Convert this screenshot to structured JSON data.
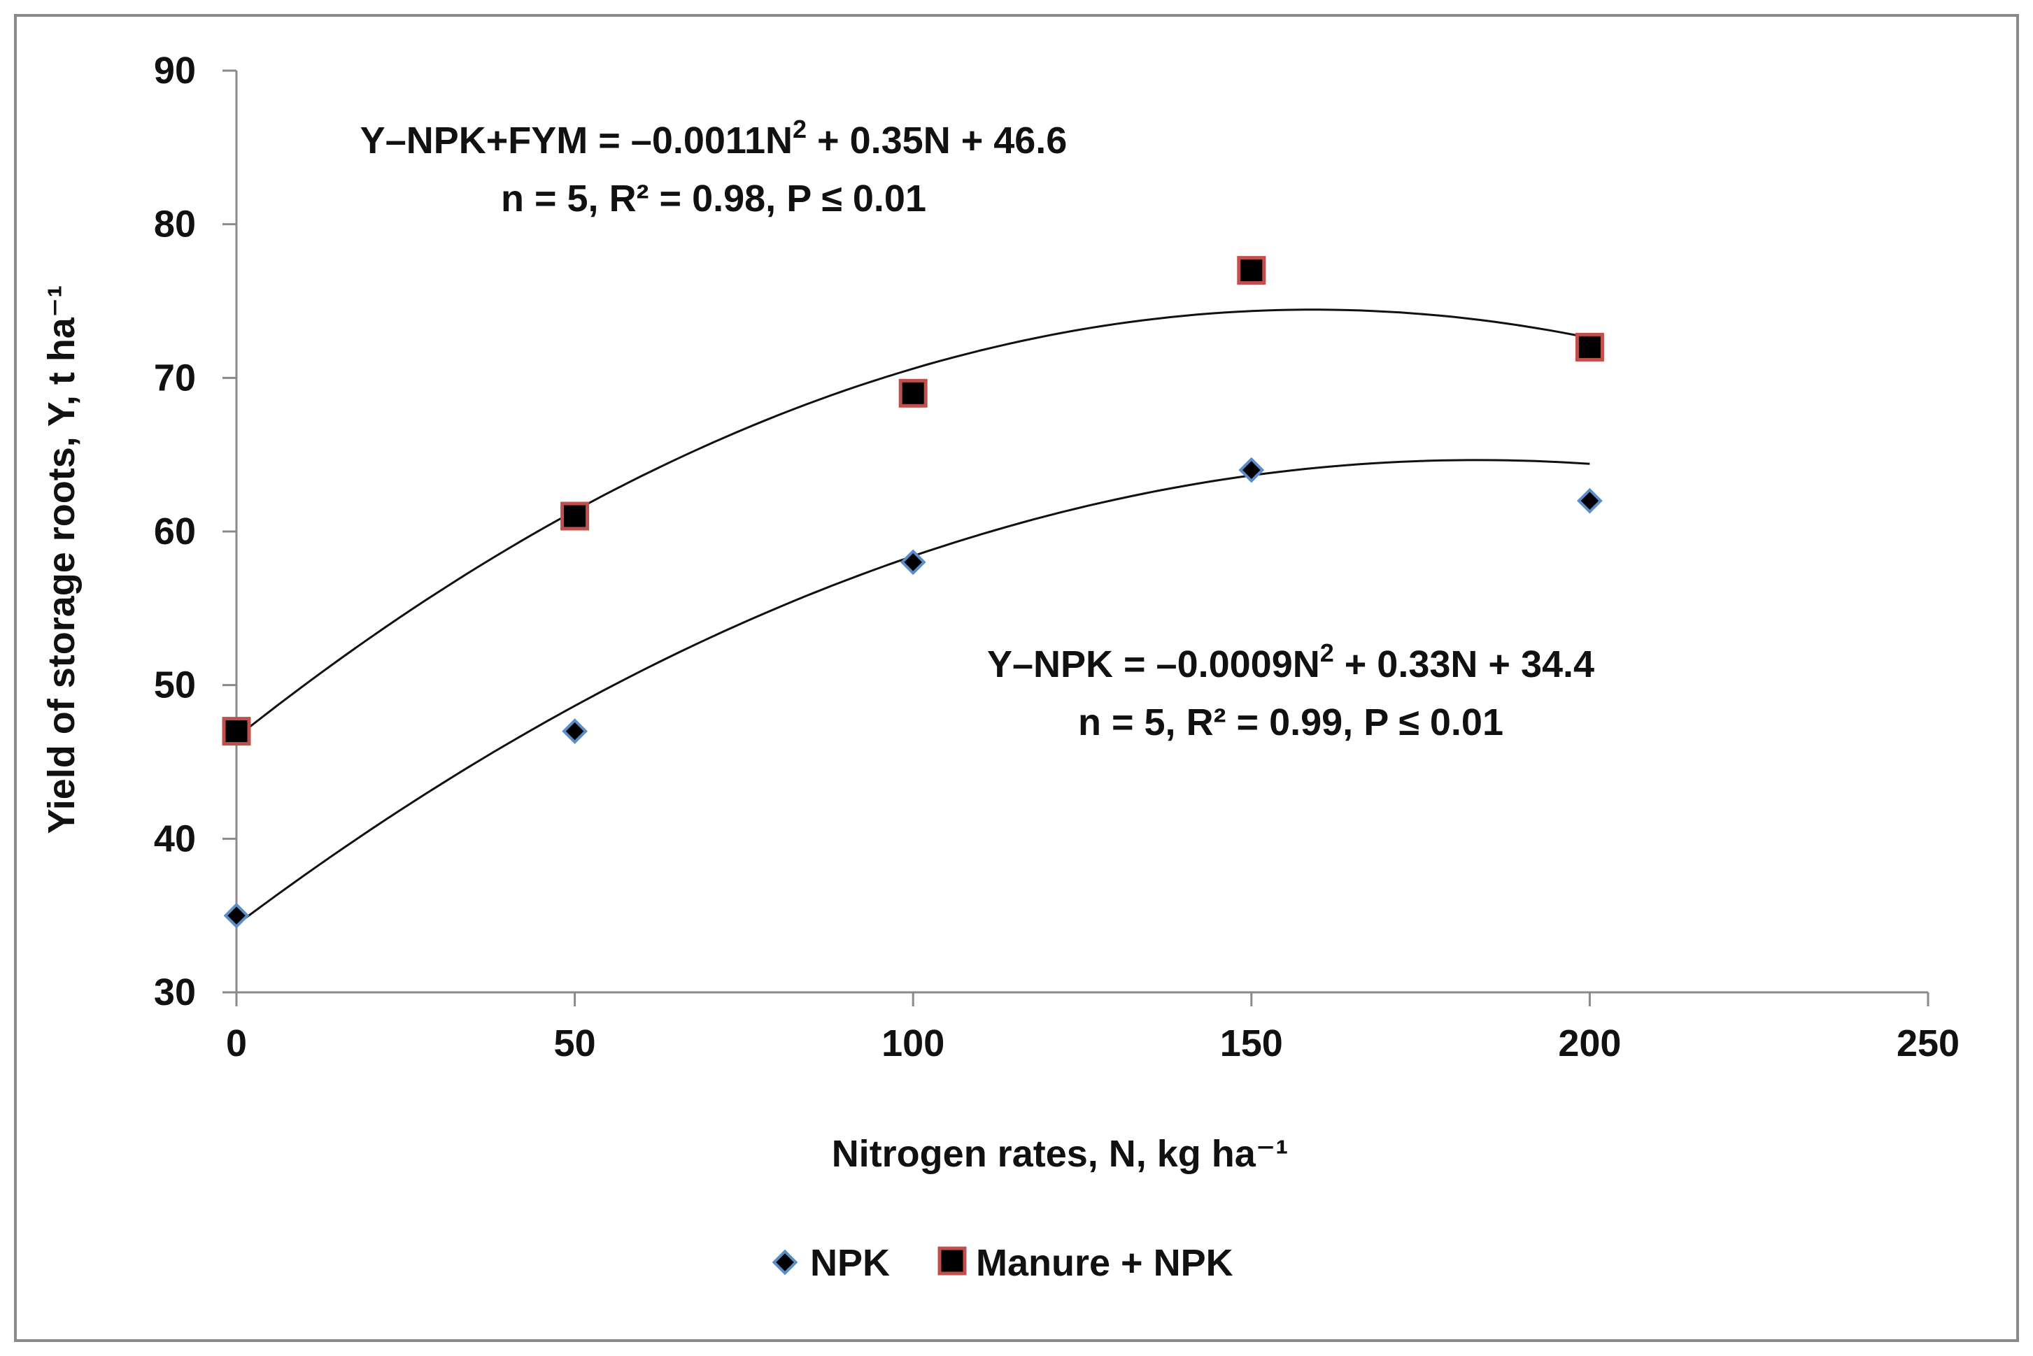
{
  "chart_data": {
    "type": "scatter",
    "xlabel": "Nitrogen rates, N, kg ha⁻¹",
    "ylabel": "Yield of storage roots,  Y, t ha⁻¹",
    "xlim": [
      0,
      250
    ],
    "ylim": [
      30,
      90
    ],
    "x_ticks": [
      0,
      50,
      100,
      150,
      200,
      250
    ],
    "y_ticks": [
      30,
      40,
      50,
      60,
      70,
      80,
      90
    ],
    "x_tick_labels": [
      "0",
      "50",
      "100",
      "150",
      "200",
      "250"
    ],
    "y_tick_labels": [
      "30",
      "40",
      "50",
      "60",
      "70",
      "80",
      "90"
    ],
    "grid": false,
    "legend_position": "bottom",
    "series": [
      {
        "name": "NPK",
        "marker": "diamond",
        "color": "#000000",
        "edge_color": "#5b8ec9",
        "x": [
          0,
          50,
          100,
          150,
          200
        ],
        "y": [
          35,
          47,
          58,
          64,
          62
        ],
        "fit": {
          "a": -0.0009,
          "b": 0.33,
          "c": 34.4
        },
        "equation": {
          "lhs": "Y–NPK = –0.0009N",
          "sup": "2",
          "rhs": " + 0.33N + 34.4"
        },
        "stats": "n = 5, R² = 0.99, P ≤ 0.01"
      },
      {
        "name": "Manure + NPK",
        "marker": "square",
        "color": "#000000",
        "edge_color": "#c0504d",
        "x": [
          0,
          50,
          100,
          150,
          200
        ],
        "y": [
          47,
          61,
          69,
          77,
          72
        ],
        "fit": {
          "a": -0.0011,
          "b": 0.35,
          "c": 46.6
        },
        "equation": {
          "lhs": "Y–NPK+FYM = –0.0011N",
          "sup": "2",
          "rhs": " + 0.35N + 46.6"
        },
        "stats": "n = 5, R² = 0.98, P ≤ 0.01"
      }
    ]
  }
}
